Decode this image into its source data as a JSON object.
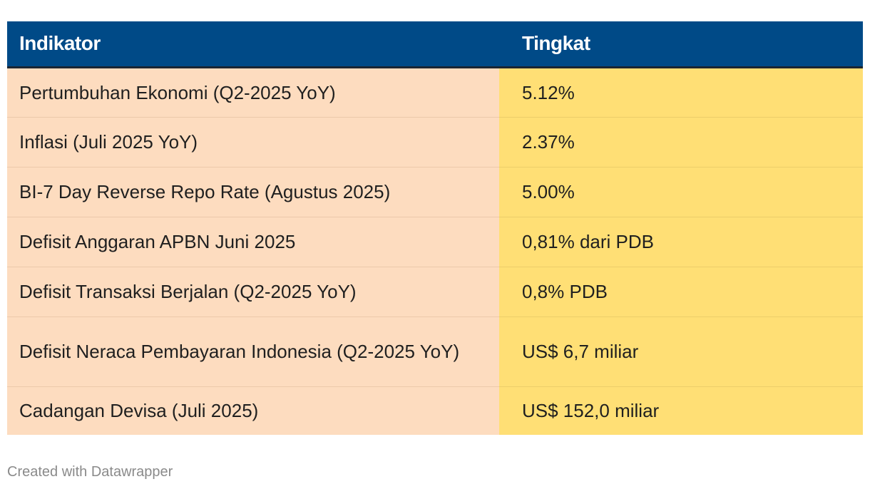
{
  "chart_data": {
    "type": "table",
    "columns": [
      "Indikator",
      "Tingkat"
    ],
    "rows": [
      [
        "Pertumbuhan Ekonomi (Q2-2025 YoY)",
        "5.12%"
      ],
      [
        "Inflasi (Juli 2025 YoY)",
        "2.37%"
      ],
      [
        "BI-7 Day Reverse Repo Rate (Agustus 2025)",
        "5.00%"
      ],
      [
        "Defisit Anggaran APBN Juni 2025",
        "0,81% dari PDB"
      ],
      [
        "Defisit Transaksi Berjalan (Q2-2025 YoY)",
        "0,8% PDB"
      ],
      [
        "Defisit Neraca Pembayaran Indonesia (Q2-2025 YoY)",
        "US$ 6,7 miliar"
      ],
      [
        "Cadangan Devisa (Juli 2025)",
        "US$ 152,0 miliar"
      ]
    ]
  },
  "colors": {
    "header_bg": "#004a87",
    "indicator_col_bg": "#fddcbf",
    "value_col_bg": "#ffdf75"
  },
  "footer": {
    "credit": "Created with Datawrapper"
  }
}
